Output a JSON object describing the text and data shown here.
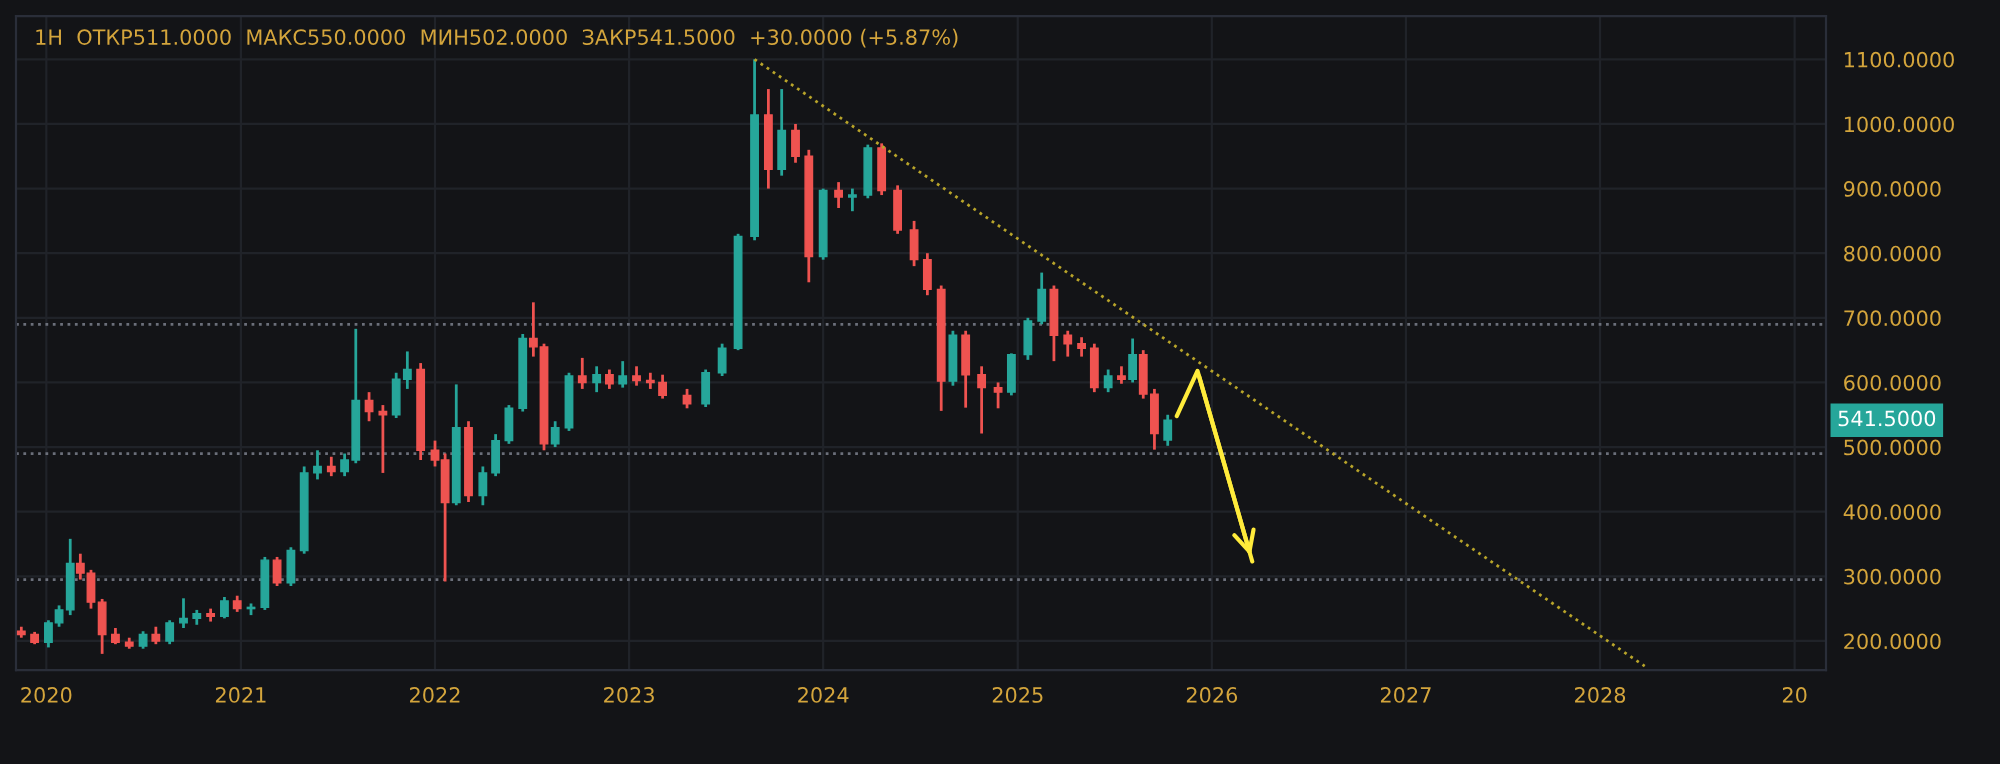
{
  "chart_data": {
    "type": "candlestick",
    "title": "1H  ОТКР511.0000  МАКС550.0000  МИН502.0000  ЗАКР541.5000  +30.0000 (+5.87%)",
    "x": [
      "2019-11-15",
      "2019-12-10",
      "2020-01-05",
      "2020-01-25",
      "2020-02-15",
      "2020-03-05",
      "2020-03-25",
      "2020-04-15",
      "2020-05-10",
      "2020-06-05",
      "2020-07-01",
      "2020-07-25",
      "2020-08-20",
      "2020-09-15",
      "2020-10-10",
      "2020-11-05",
      "2020-12-01",
      "2020-12-25",
      "2021-01-20",
      "2021-02-15",
      "2021-03-10",
      "2021-04-05",
      "2021-04-30",
      "2021-05-25",
      "2021-06-20",
      "2021-07-15",
      "2021-08-05",
      "2021-08-30",
      "2021-09-25",
      "2021-10-20",
      "2021-11-10",
      "2021-12-05",
      "2022-01-01",
      "2022-01-20",
      "2022-02-10",
      "2022-03-05",
      "2022-04-01",
      "2022-04-25",
      "2022-05-20",
      "2022-06-15",
      "2022-07-05",
      "2022-07-25",
      "2022-08-15",
      "2022-09-10",
      "2022-10-05",
      "2022-11-01",
      "2022-11-25",
      "2022-12-20",
      "2023-01-15",
      "2023-02-10",
      "2023-03-05",
      "2023-04-20",
      "2023-05-25",
      "2023-06-25",
      "2023-07-25",
      "2023-08-25",
      "2023-09-20",
      "2023-10-15",
      "2023-11-10",
      "2023-12-05",
      "2024-01-01",
      "2024-01-30",
      "2024-02-25",
      "2024-03-25",
      "2024-04-20",
      "2024-05-20",
      "2024-06-20",
      "2024-07-15",
      "2024-08-10",
      "2024-09-01",
      "2024-09-25",
      "2024-10-25",
      "2024-11-25",
      "2024-12-20",
      "2025-01-20",
      "2025-02-15",
      "2025-03-10",
      "2025-04-05",
      "2025-05-01",
      "2025-05-25",
      "2025-06-20",
      "2025-07-15",
      "2025-08-05",
      "2025-08-25",
      "2025-09-15",
      "2025-10-10"
    ],
    "ohlc": [
      [
        215,
        222,
        205,
        210
      ],
      [
        210,
        214,
        195,
        198
      ],
      [
        198,
        232,
        190,
        228
      ],
      [
        228,
        255,
        222,
        248
      ],
      [
        248,
        358,
        240,
        320
      ],
      [
        320,
        335,
        295,
        305
      ],
      [
        305,
        310,
        250,
        260
      ],
      [
        260,
        265,
        180,
        210
      ],
      [
        210,
        220,
        195,
        198
      ],
      [
        198,
        205,
        188,
        192
      ],
      [
        192,
        215,
        188,
        210
      ],
      [
        210,
        222,
        195,
        200
      ],
      [
        200,
        232,
        195,
        228
      ],
      [
        228,
        266,
        220,
        235
      ],
      [
        235,
        248,
        225,
        242
      ],
      [
        242,
        250,
        230,
        238
      ],
      [
        238,
        268,
        235,
        262
      ],
      [
        262,
        270,
        245,
        250
      ],
      [
        250,
        258,
        240,
        252
      ],
      [
        252,
        330,
        248,
        325
      ],
      [
        325,
        330,
        285,
        290
      ],
      [
        290,
        345,
        285,
        340
      ],
      [
        340,
        470,
        335,
        460
      ],
      [
        460,
        495,
        450,
        470
      ],
      [
        470,
        485,
        455,
        462
      ],
      [
        462,
        490,
        455,
        480
      ],
      [
        480,
        683,
        475,
        572
      ],
      [
        572,
        585,
        540,
        555
      ],
      [
        555,
        565,
        460,
        550
      ],
      [
        550,
        615,
        545,
        605
      ],
      [
        605,
        648,
        590,
        620
      ],
      [
        620,
        630,
        480,
        495
      ],
      [
        495,
        510,
        470,
        480
      ],
      [
        480,
        490,
        292,
        414
      ],
      [
        414,
        597,
        410,
        530
      ],
      [
        530,
        540,
        415,
        425
      ],
      [
        425,
        470,
        410,
        460
      ],
      [
        460,
        520,
        455,
        510
      ],
      [
        510,
        565,
        505,
        560
      ],
      [
        560,
        675,
        555,
        668
      ],
      [
        668,
        724,
        640,
        655
      ],
      [
        655,
        660,
        495,
        505
      ],
      [
        505,
        540,
        500,
        530
      ],
      [
        530,
        615,
        525,
        610
      ],
      [
        610,
        638,
        590,
        600
      ],
      [
        600,
        625,
        585,
        612
      ],
      [
        612,
        620,
        590,
        598
      ],
      [
        598,
        633,
        592,
        610
      ],
      [
        610,
        625,
        595,
        603
      ],
      [
        603,
        615,
        590,
        600
      ],
      [
        600,
        612,
        575,
        580
      ],
      [
        580,
        590,
        560,
        567
      ],
      [
        567,
        620,
        562,
        615
      ],
      [
        615,
        660,
        610,
        653
      ],
      [
        653,
        830,
        650,
        826
      ],
      [
        826,
        1100,
        820,
        1014
      ],
      [
        1014,
        1054,
        900,
        930
      ],
      [
        930,
        1054,
        920,
        990
      ],
      [
        990,
        1000,
        940,
        950
      ],
      [
        950,
        960,
        755,
        795
      ],
      [
        795,
        900,
        790,
        897
      ],
      [
        897,
        910,
        870,
        887
      ],
      [
        887,
        900,
        865,
        890
      ],
      [
        890,
        968,
        885,
        963
      ],
      [
        963,
        970,
        890,
        897
      ],
      [
        897,
        905,
        830,
        836
      ],
      [
        836,
        850,
        780,
        790
      ],
      [
        790,
        800,
        735,
        744
      ],
      [
        744,
        750,
        556,
        602
      ],
      [
        602,
        680,
        595,
        673
      ],
      [
        673,
        680,
        561,
        612
      ],
      [
        612,
        625,
        521,
        592
      ],
      [
        592,
        600,
        560,
        585
      ],
      [
        585,
        645,
        580,
        643
      ],
      [
        643,
        700,
        635,
        695
      ],
      [
        695,
        770,
        690,
        744
      ],
      [
        744,
        750,
        633,
        673
      ],
      [
        673,
        680,
        640,
        660
      ],
      [
        660,
        670,
        640,
        653
      ],
      [
        653,
        660,
        585,
        592
      ],
      [
        592,
        620,
        585,
        610
      ],
      [
        610,
        625,
        598,
        605
      ],
      [
        605,
        668,
        600,
        643
      ],
      [
        643,
        650,
        575,
        582
      ],
      [
        582,
        590,
        496,
        521
      ],
      [
        511,
        550,
        502,
        541.5
      ]
    ],
    "colors": [
      "#ef5350",
      "#ef5350",
      "#26a69a",
      "#26a69a",
      "#26a69a",
      "#ef5350",
      "#ef5350",
      "#ef5350",
      "#ef5350",
      "#ef5350",
      "#26a69a",
      "#ef5350",
      "#26a69a",
      "#26a69a",
      "#26a69a",
      "#ef5350",
      "#26a69a",
      "#ef5350",
      "#26a69a",
      "#26a69a",
      "#ef5350",
      "#26a69a",
      "#26a69a",
      "#26a69a",
      "#ef5350",
      "#26a69a",
      "#26a69a",
      "#ef5350",
      "#ef5350",
      "#26a69a",
      "#26a69a",
      "#ef5350",
      "#ef5350",
      "#ef5350",
      "#26a69a",
      "#ef5350",
      "#26a69a",
      "#26a69a",
      "#26a69a",
      "#26a69a",
      "#ef5350",
      "#ef5350",
      "#26a69a",
      "#26a69a",
      "#ef5350",
      "#26a69a",
      "#ef5350",
      "#26a69a",
      "#ef5350",
      "#ef5350",
      "#ef5350",
      "#ef5350",
      "#26a69a",
      "#26a69a",
      "#26a69a",
      "#26a69a",
      "#ef5350",
      "#26a69a",
      "#ef5350",
      "#ef5350",
      "#26a69a",
      "#ef5350",
      "#26a69a",
      "#26a69a",
      "#ef5350",
      "#ef5350",
      "#ef5350",
      "#ef5350",
      "#ef5350",
      "#26a69a",
      "#ef5350",
      "#ef5350",
      "#ef5350",
      "#26a69a",
      "#26a69a",
      "#26a69a",
      "#ef5350",
      "#ef5350",
      "#ef5350",
      "#ef5350",
      "#26a69a",
      "#ef5350",
      "#26a69a",
      "#ef5350",
      "#ef5350",
      "#26a69a"
    ],
    "series": [
      {
        "type": "line",
        "x": [
          "2023-08-25",
          "2028-03-25"
        ],
        "values": [
          1100,
          161
        ],
        "color": "#b8a42a",
        "line_style": "dotted"
      },
      {
        "type": "line",
        "x": [
          "2025-10-27",
          "2025-12-05",
          "2026-03-18"
        ],
        "values": [
          548,
          618,
          323
        ],
        "color": "#ffeb3b",
        "line_style": "solid"
      }
    ],
    "ref_lines": [
      {
        "axis": "y",
        "value": 690,
        "color": "#6b6f7a",
        "line_style": "dotted"
      },
      {
        "axis": "y",
        "value": 490,
        "color": "#6b6f7a",
        "line_style": "dotted"
      },
      {
        "axis": "y",
        "value": 295,
        "color": "#6b6f7a",
        "line_style": "dotted"
      }
    ],
    "annotations": [
      "541.5000"
    ],
    "xlim": [
      "2019-11-05",
      "2029-03-01"
    ],
    "xticks": [
      "2020",
      "2021",
      "2022",
      "2023",
      "2024",
      "2025",
      "2026",
      "2027",
      "2028",
      {
        "value": "2029",
        "label": "20"
      }
    ],
    "ylim": [
      155,
      1167
    ],
    "yticks": [
      {
        "value": 200,
        "label": "200.0000"
      },
      {
        "value": 300,
        "label": "300.0000"
      },
      {
        "value": 400,
        "label": "400.0000"
      },
      {
        "value": 500,
        "label": "500.0000"
      },
      {
        "value": 600,
        "label": "600.0000"
      },
      {
        "value": 700,
        "label": "700.0000"
      },
      {
        "value": 800,
        "label": "800.0000"
      },
      {
        "value": 900,
        "label": "900.0000"
      },
      {
        "value": 1000,
        "label": "1000.0000"
      },
      {
        "value": 1100,
        "label": "1100.0000"
      }
    ],
    "grid": true
  }
}
